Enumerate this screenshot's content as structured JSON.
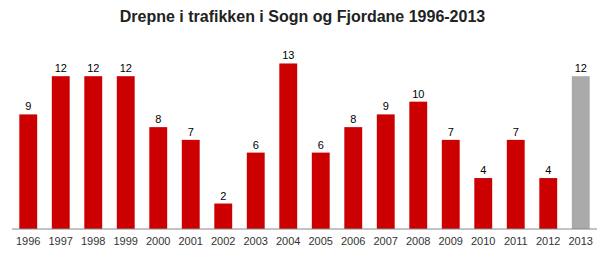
{
  "chart_data": {
    "type": "bar",
    "title": "Drepne i trafikken i Sogn og Fjordane 1996-2013",
    "categories": [
      "1996",
      "1997",
      "1998",
      "1999",
      "2000",
      "2001",
      "2002",
      "2003",
      "2004",
      "2005",
      "2006",
      "2007",
      "2008",
      "2009",
      "2010",
      "2011",
      "2012",
      "2013"
    ],
    "values": [
      9,
      12,
      12,
      12,
      8,
      7,
      2,
      6,
      13,
      6,
      8,
      9,
      10,
      7,
      4,
      7,
      4,
      12
    ],
    "colors": [
      "#cc0000",
      "#cc0000",
      "#cc0000",
      "#cc0000",
      "#cc0000",
      "#cc0000",
      "#cc0000",
      "#cc0000",
      "#cc0000",
      "#cc0000",
      "#cc0000",
      "#cc0000",
      "#cc0000",
      "#cc0000",
      "#cc0000",
      "#cc0000",
      "#cc0000",
      "#aaaaaa"
    ],
    "ylim": [
      0,
      15
    ],
    "data_labels": true,
    "tick_labels": "x"
  }
}
